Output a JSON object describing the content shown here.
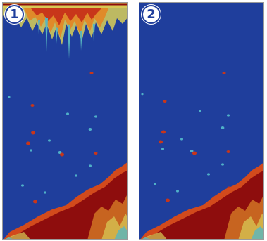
{
  "panels": [
    {
      "badge": "1",
      "surface_clutter": true
    },
    {
      "badge": "2",
      "surface_clutter": false
    }
  ],
  "colors": {
    "water": "#1f3e9c",
    "bottom_core": "#8e0d0d",
    "bottom_edge": "#d24a1c",
    "clutter_orange": "#e08a2a",
    "clutter_yellow": "#d9cf58",
    "clutter_cyan": "#57b6c0",
    "fish_red": "#c8361a",
    "fish_cyan": "#4fb0c8"
  },
  "icons": [
    "surface-clutter-icon",
    "bottom-return-icon",
    "fish-arch-icon"
  ]
}
